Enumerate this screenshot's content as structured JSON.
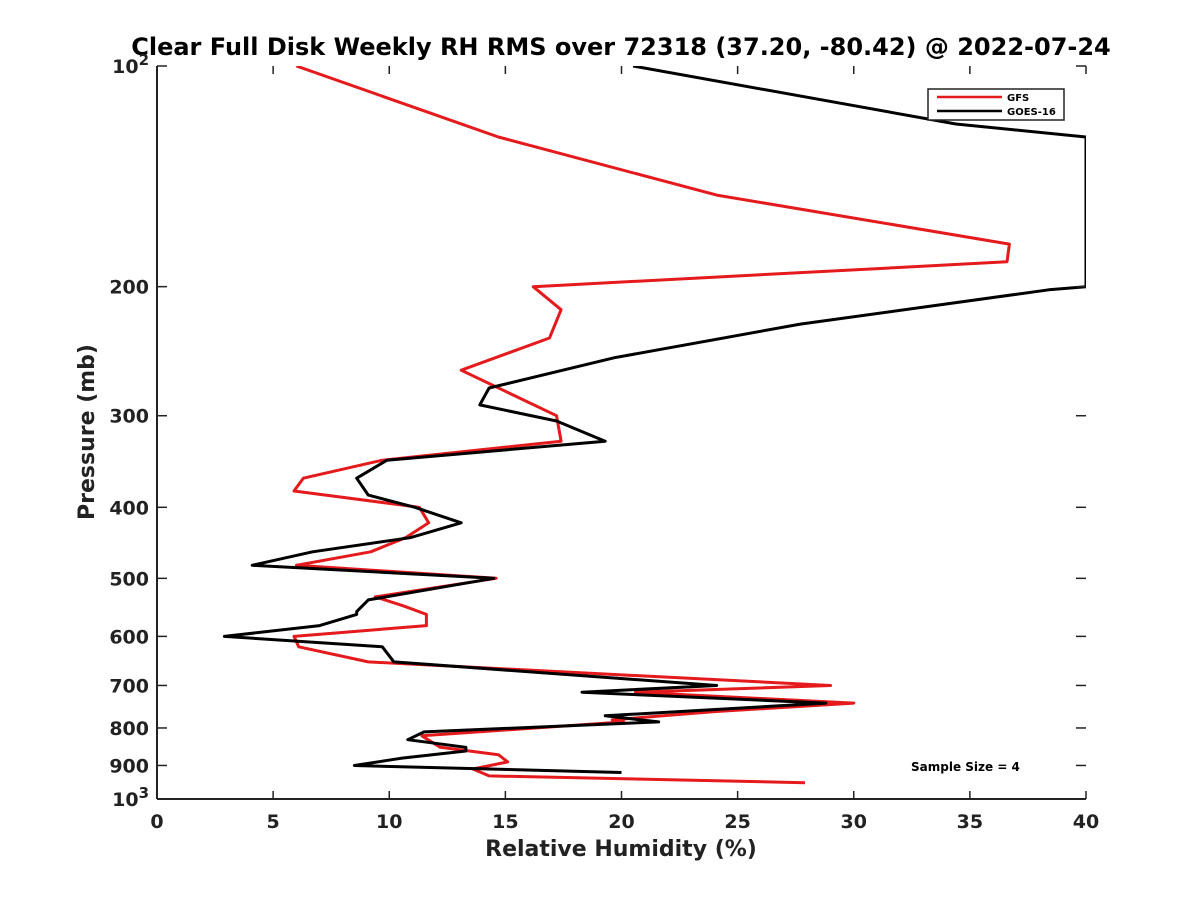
{
  "chart_data": {
    "type": "line",
    "title": "Clear Full Disk Weekly RH RMS over 72318 (37.20, -80.42) @ 2022-07-24",
    "xlabel": "Relative Humidity (%)",
    "ylabel": "Pressure (mb)",
    "xlim": [
      0,
      40
    ],
    "ylim": [
      1000,
      100
    ],
    "yscale": "log",
    "y_reversed": true,
    "grid": false,
    "legend_position": "top-right",
    "x_ticks": [
      0,
      5,
      10,
      15,
      20,
      25,
      30,
      35,
      40
    ],
    "y_ticks": [
      100,
      200,
      300,
      400,
      500,
      600,
      700,
      800,
      900,
      1000
    ],
    "y_tick_labels": {
      "100": {
        "base": "10",
        "exp": "2"
      },
      "200": {
        "text": "200"
      },
      "300": {
        "text": "300"
      },
      "400": {
        "text": "400"
      },
      "500": {
        "text": "500"
      },
      "600": {
        "text": "600"
      },
      "700": {
        "text": "700"
      },
      "800": {
        "text": "800"
      },
      "900": {
        "text": "900"
      },
      "1000": {
        "base": "10",
        "exp": "3"
      }
    },
    "annotation": "Sample Size = 4",
    "series": [
      {
        "name": "GFS",
        "color": "#e41a1c",
        "points": [
          [
            6.0,
            100
          ],
          [
            14.7,
            125
          ],
          [
            24.1,
            150
          ],
          [
            36.7,
            175
          ],
          [
            36.6,
            185
          ],
          [
            16.2,
            200
          ],
          [
            17.4,
            215
          ],
          [
            16.9,
            235
          ],
          [
            13.1,
            260
          ],
          [
            17.2,
            300
          ],
          [
            17.4,
            325
          ],
          [
            9.7,
            345
          ],
          [
            6.3,
            365
          ],
          [
            5.9,
            380
          ],
          [
            11.3,
            400
          ],
          [
            11.7,
            420
          ],
          [
            10.7,
            440
          ],
          [
            9.2,
            460
          ],
          [
            6.0,
            480
          ],
          [
            14.6,
            500
          ],
          [
            9.4,
            530
          ],
          [
            10.6,
            545
          ],
          [
            11.6,
            560
          ],
          [
            11.6,
            580
          ],
          [
            5.9,
            600
          ],
          [
            6.1,
            620
          ],
          [
            9.1,
            650
          ],
          [
            29.0,
            700
          ],
          [
            20.6,
            715
          ],
          [
            30.0,
            740
          ],
          [
            24.0,
            760
          ],
          [
            19.6,
            780
          ],
          [
            20.1,
            785
          ],
          [
            11.4,
            820
          ],
          [
            12.2,
            850
          ],
          [
            14.7,
            870
          ],
          [
            15.1,
            890
          ],
          [
            13.6,
            910
          ],
          [
            14.3,
            930
          ],
          [
            27.9,
            950
          ]
        ]
      },
      {
        "name": "GOES-16",
        "color": "#000000",
        "points": [
          [
            20.5,
            100
          ],
          [
            34.4,
            120
          ],
          [
            40.0,
            125
          ],
          [
            40.0,
            200
          ],
          [
            38.4,
            202
          ],
          [
            27.7,
            225
          ],
          [
            19.7,
            250
          ],
          [
            14.3,
            275
          ],
          [
            13.9,
            290
          ],
          [
            17.2,
            305
          ],
          [
            19.3,
            325
          ],
          [
            9.9,
            345
          ],
          [
            8.6,
            365
          ],
          [
            9.1,
            385
          ],
          [
            11.1,
            400
          ],
          [
            13.1,
            420
          ],
          [
            10.9,
            440
          ],
          [
            6.7,
            460
          ],
          [
            4.1,
            480
          ],
          [
            14.5,
            500
          ],
          [
            9.1,
            535
          ],
          [
            8.6,
            555
          ],
          [
            8.6,
            560
          ],
          [
            7.0,
            580
          ],
          [
            2.9,
            600
          ],
          [
            9.7,
            620
          ],
          [
            10.2,
            650
          ],
          [
            24.1,
            700
          ],
          [
            18.3,
            715
          ],
          [
            28.8,
            740
          ],
          [
            19.3,
            770
          ],
          [
            21.6,
            785
          ],
          [
            11.5,
            810
          ],
          [
            10.8,
            830
          ],
          [
            13.3,
            850
          ],
          [
            13.3,
            860
          ],
          [
            10.5,
            880
          ],
          [
            8.5,
            900
          ],
          [
            20.0,
            920
          ]
        ]
      }
    ]
  }
}
